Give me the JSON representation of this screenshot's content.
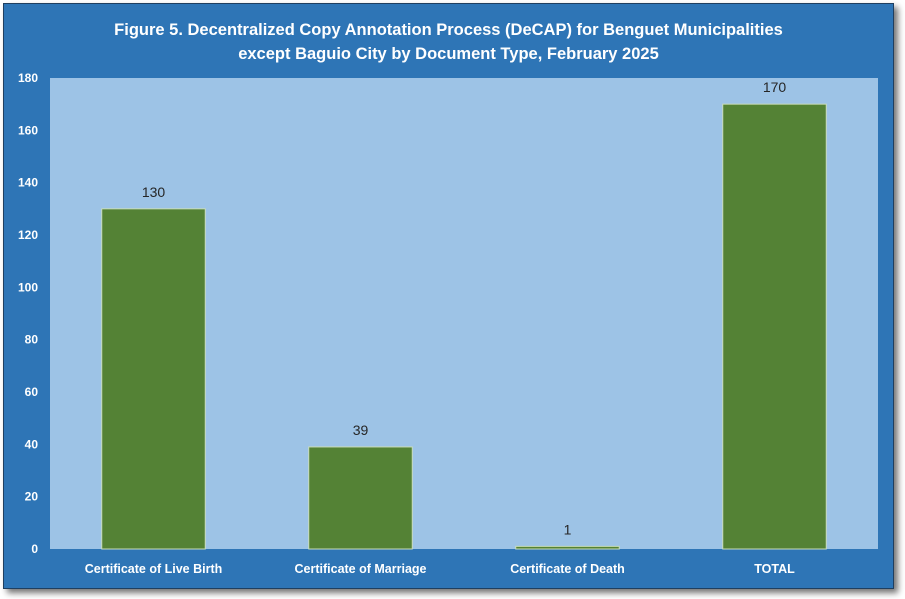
{
  "chart_data": {
    "type": "bar",
    "title_line1": "Figure 5. Decentralized Copy Annotation Process (DeCAP) for Benguet Municipalities",
    "title_line2": "except Baguio City by Document Type, February 2025",
    "categories": [
      "Certificate of Live Birth",
      "Certificate of Marriage",
      "Certificate of Death",
      "TOTAL"
    ],
    "values": [
      130,
      39,
      1,
      170
    ],
    "data_labels": [
      "130",
      "39",
      "1",
      "170"
    ],
    "ylim": [
      0,
      180
    ],
    "yticks": [
      0,
      20,
      40,
      60,
      80,
      100,
      120,
      140,
      160,
      180
    ],
    "xlabel": "",
    "ylabel": "",
    "grid": false,
    "legend": "none",
    "colors": {
      "frame": "#2e75b6",
      "plot_area": "#9dc3e6",
      "bar": "#548235",
      "bar_edge": "#c9dcb8",
      "text_light": "#ffffff",
      "data_label": "#262626"
    }
  }
}
